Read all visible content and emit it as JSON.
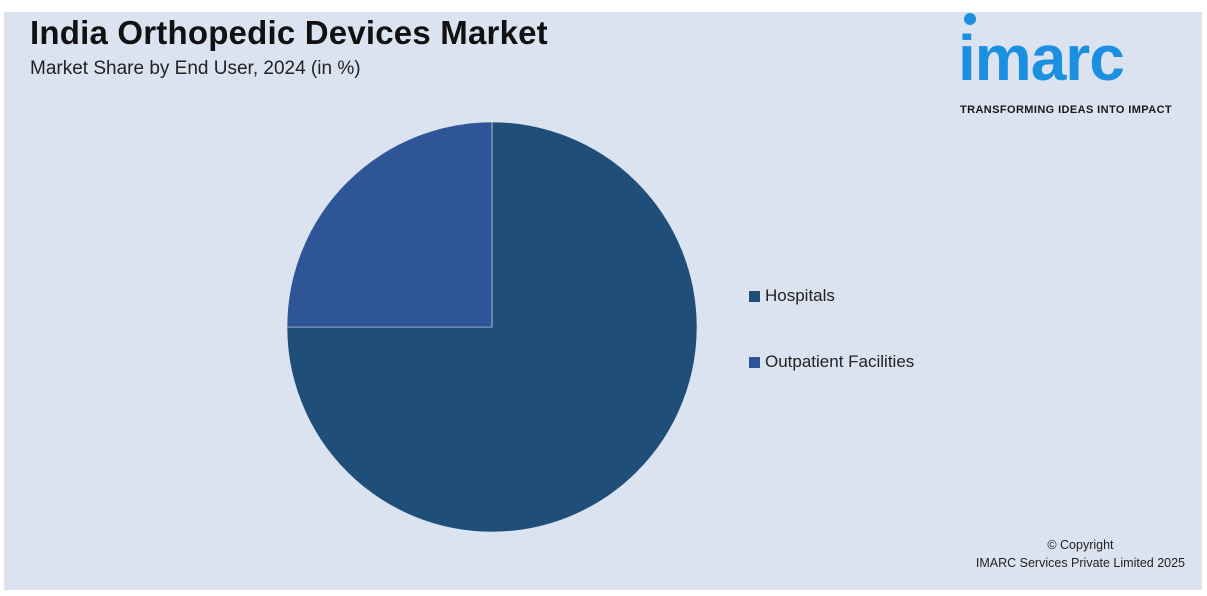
{
  "header": {
    "title": "India Orthopedic Devices Market",
    "subtitle": "Market Share by End User, 2024 (in %)"
  },
  "logo": {
    "word": "imarc",
    "tagline": "TRANSFORMING IDEAS INTO IMPACT",
    "color": "#1b8fe0"
  },
  "chart_data": {
    "type": "pie",
    "title": "India Orthopedic Devices Market",
    "subtitle": "Market Share by End User, 2024 (in %)",
    "legend_position": "right",
    "categories": [
      "Hospitals",
      "Outpatient Facilities"
    ],
    "values": [
      75,
      25
    ],
    "colors": [
      "#1f4e79",
      "#2e5597"
    ],
    "data_labels": false
  },
  "footer": {
    "copyright_line1": "© Copyright",
    "copyright_line2": "IMARC Services Private Limited 2025"
  }
}
